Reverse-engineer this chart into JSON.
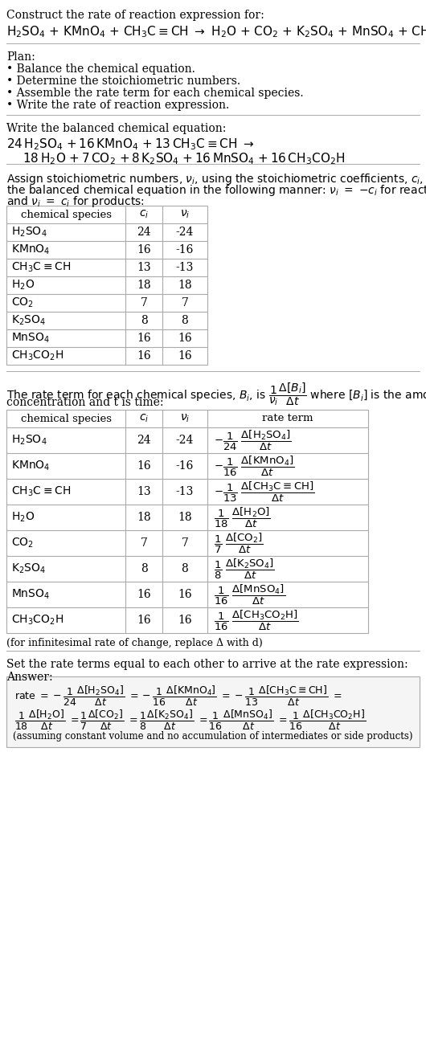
{
  "bg_color": "#ffffff",
  "serif": "DejaVu Serif",
  "title": "Construct the rate of reaction expression for:",
  "table1_data": [
    [
      "H_2SO_4",
      "24",
      "-24"
    ],
    [
      "KMnO_4",
      "16",
      "-16"
    ],
    [
      "CH_3C{\\equiv}CH",
      "13",
      "-13"
    ],
    [
      "H_2O",
      "18",
      "18"
    ],
    [
      "CO_2",
      "7",
      "7"
    ],
    [
      "K_2SO_4",
      "8",
      "8"
    ],
    [
      "MnSO_4",
      "16",
      "16"
    ],
    [
      "CH_3CO_2H",
      "16",
      "16"
    ]
  ],
  "table2_neg": [
    true,
    true,
    true,
    false,
    false,
    false,
    false,
    false
  ],
  "table2_denoms": [
    "24",
    "16",
    "13",
    "18",
    "7",
    "8",
    "16",
    "16"
  ],
  "table2_species_tex": [
    "H_2SO_4",
    "KMnO_4",
    "CH_3C{\\equiv}CH",
    "H_2O",
    "CO_2",
    "K_2SO_4",
    "MnSO_4",
    "CH_3CO_2H"
  ]
}
